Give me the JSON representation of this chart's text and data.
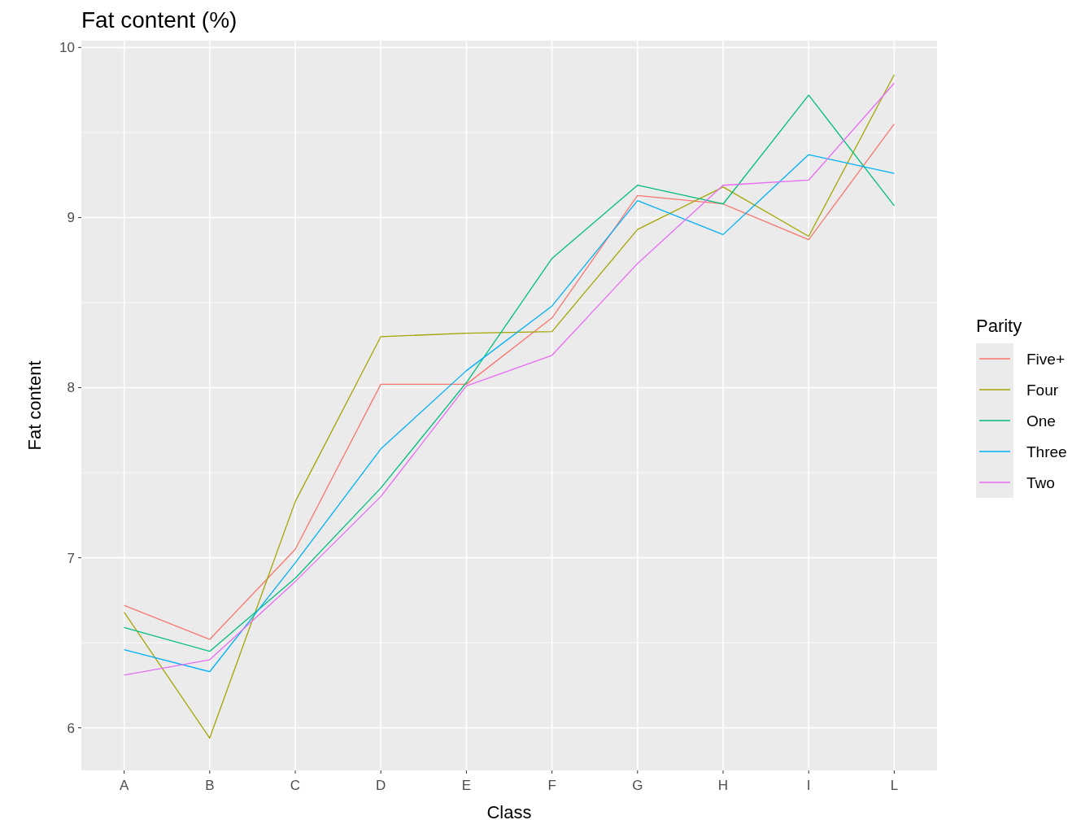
{
  "chart_data": {
    "type": "line",
    "title": "Fat content (%)",
    "xlabel": "Class",
    "ylabel": "Fat content",
    "legend_title": "Parity",
    "legend": "right",
    "grid": true,
    "categories": [
      "A",
      "B",
      "C",
      "D",
      "E",
      "F",
      "G",
      "H",
      "I",
      "L"
    ],
    "ylim": [
      5.75,
      10.04
    ],
    "yticks": [
      6,
      7,
      8,
      9,
      10
    ],
    "series": [
      {
        "name": "Five+",
        "color": "#f8766d",
        "values": [
          6.72,
          6.52,
          7.05,
          8.02,
          8.02,
          8.41,
          9.13,
          9.08,
          8.87,
          9.55
        ]
      },
      {
        "name": "Four",
        "color": "#a3a500",
        "values": [
          6.68,
          5.94,
          7.33,
          8.3,
          8.32,
          8.33,
          8.93,
          9.18,
          8.89,
          9.84
        ]
      },
      {
        "name": "One",
        "color": "#00bf7d",
        "values": [
          6.59,
          6.45,
          6.88,
          7.41,
          8.03,
          8.76,
          9.19,
          9.08,
          9.72,
          9.07
        ]
      },
      {
        "name": "Three",
        "color": "#00b0f6",
        "values": [
          6.46,
          6.33,
          6.97,
          7.64,
          8.1,
          8.48,
          9.1,
          8.9,
          9.37,
          9.26
        ]
      },
      {
        "name": "Two",
        "color": "#e76bf3",
        "values": [
          6.31,
          6.4,
          6.86,
          7.36,
          8.01,
          8.19,
          8.73,
          9.19,
          9.22,
          9.79
        ]
      }
    ]
  }
}
